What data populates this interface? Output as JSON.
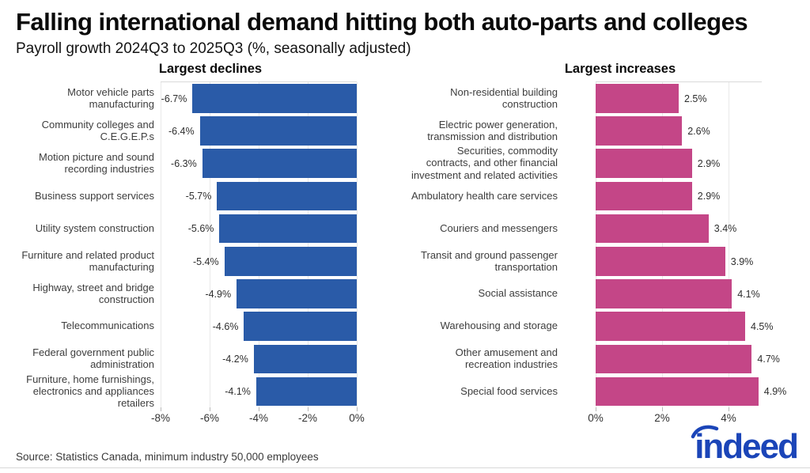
{
  "header": {
    "title": "Falling international demand hitting both auto-parts and colleges",
    "subtitle": "Payroll growth 2024Q3 to 2025Q3 (%, seasonally adjusted)"
  },
  "footer": {
    "source": "Source: Statistics Canada, minimum industry 50,000 employees",
    "logo_text": "indeed"
  },
  "colors": {
    "decline_bar": "#2a5ba8",
    "increase_bar": "#c44687",
    "logo_blue": "#1b45b8",
    "gridline": "#e9e9e9",
    "text": "#3d3d3d"
  },
  "chart_data": [
    {
      "type": "bar",
      "orientation": "horizontal",
      "title": "Largest declines",
      "units": "%",
      "categories": [
        "Motor vehicle parts manufacturing",
        "Community colleges and C.E.G.E.P.s",
        "Motion picture and sound recording industries",
        "Business support services",
        "Utility system construction",
        "Furniture and related product manufacturing",
        "Highway, street and bridge construction",
        "Telecommunications",
        "Federal government public administration",
        "Furniture, home furnishings, electronics and appliances retailers"
      ],
      "values": [
        -6.7,
        -6.4,
        -6.3,
        -5.7,
        -5.6,
        -5.4,
        -4.9,
        -4.6,
        -4.2,
        -4.1
      ],
      "value_labels": [
        "-6.7%",
        "-6.4%",
        "-6.3%",
        "-5.7%",
        "-5.6%",
        "-5.4%",
        "-4.9%",
        "-4.6%",
        "-4.2%",
        "-4.1%"
      ],
      "x_tick_labels": [
        "-8%",
        "-6%",
        "-4%",
        "-2%",
        "0%"
      ],
      "x_tick_values": [
        -8,
        -6,
        -4,
        -2,
        0
      ],
      "xlim": [
        -8,
        0
      ],
      "bar_color": "#2a5ba8",
      "bar_anchor": "right",
      "grid": true,
      "xlabel": "",
      "ylabel": ""
    },
    {
      "type": "bar",
      "orientation": "horizontal",
      "title": "Largest increases",
      "units": "%",
      "categories": [
        "Non-residential building construction",
        "Electric power generation, transmission and distribution",
        "Securities, commodity contracts, and other financial investment and related activities",
        "Ambulatory health care services",
        "Couriers and messengers",
        "Transit and ground passenger transportation",
        "Social assistance",
        "Warehousing and storage",
        "Other amusement and recreation industries",
        "Special food services"
      ],
      "values": [
        2.5,
        2.6,
        2.9,
        2.9,
        3.4,
        3.9,
        4.1,
        4.5,
        4.7,
        4.9
      ],
      "value_labels": [
        "2.5%",
        "2.6%",
        "2.9%",
        "2.9%",
        "3.4%",
        "3.9%",
        "4.1%",
        "4.5%",
        "4.7%",
        "4.9%"
      ],
      "x_tick_labels": [
        "0%",
        "2%",
        "4%"
      ],
      "x_tick_values": [
        0,
        2,
        4
      ],
      "xlim": [
        0,
        5
      ],
      "bar_color": "#c44687",
      "bar_anchor": "left",
      "grid": true,
      "xlabel": "",
      "ylabel": ""
    }
  ]
}
